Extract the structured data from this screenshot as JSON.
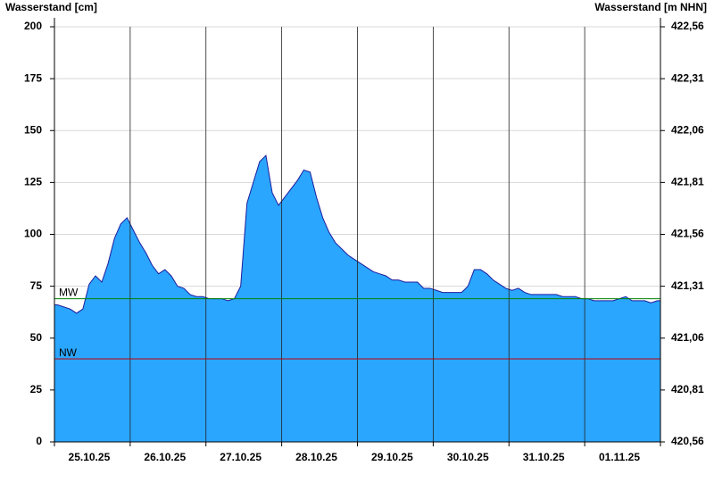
{
  "chart_data": {
    "type": "area",
    "title_left": "Wasserstand [cm]",
    "title_right": "Wasserstand [m NHN]",
    "categories": [
      null,
      null,
      null,
      null,
      null,
      "25.10.25",
      null,
      null,
      null,
      null,
      null,
      null,
      null,
      null,
      null,
      null,
      null,
      "26.10.25",
      null,
      null,
      null,
      null,
      null,
      null,
      null,
      null,
      null,
      null,
      null,
      "27.10.25",
      null,
      null,
      null,
      null,
      null,
      null,
      null,
      null,
      null,
      null,
      null,
      "28.10.25",
      null,
      null,
      null,
      null,
      null,
      null,
      null,
      null,
      null,
      null,
      null,
      "29.10.25",
      null,
      null,
      null,
      null,
      null,
      null,
      null,
      null,
      null,
      null,
      null,
      "30.10.25",
      null,
      null,
      null,
      null,
      null,
      null,
      null,
      null,
      null,
      null,
      null,
      "31.10.25",
      null,
      null,
      null,
      null,
      null,
      null,
      null,
      null,
      null,
      null,
      null,
      "01.11.25",
      null,
      null,
      null,
      null,
      null,
      null
    ],
    "series": [
      {
        "name": "Wasserstand",
        "color": "#2aa6ff",
        "line_color": "#1c1c9c",
        "values": [
          66,
          65,
          64,
          62,
          64,
          76,
          80,
          77,
          86,
          98,
          105,
          108,
          102,
          96,
          91,
          85,
          81,
          83,
          80,
          75,
          74,
          71,
          70,
          70,
          69,
          69,
          69,
          68,
          69,
          75,
          115,
          125,
          135,
          138,
          120,
          114,
          118,
          122,
          126,
          131,
          130,
          118,
          108,
          101,
          96,
          93,
          90,
          88,
          86,
          84,
          82,
          81,
          80,
          78,
          78,
          77,
          77,
          77,
          74,
          74,
          73,
          72,
          72,
          72,
          72,
          75,
          83,
          83,
          81,
          78,
          76,
          74,
          73,
          74,
          72,
          71,
          71,
          71,
          71,
          71,
          70,
          70,
          70,
          69,
          69,
          68,
          68,
          68,
          68,
          69,
          70,
          68,
          68,
          68,
          67,
          68
        ]
      }
    ],
    "reference_lines": [
      {
        "label": "MW",
        "value": 69,
        "color": "#008000"
      },
      {
        "label": "NW",
        "value": 40,
        "color": "#c00000"
      }
    ],
    "ylim": [
      0,
      200
    ],
    "yticks": [
      0,
      25,
      50,
      75,
      100,
      125,
      150,
      175,
      200
    ],
    "y2lim": [
      420.56,
      422.56
    ],
    "y2ticks": [
      {
        "value": 420.56,
        "label": "420,56"
      },
      {
        "value": 420.81,
        "label": "420,81"
      },
      {
        "value": 421.06,
        "label": "421,06"
      },
      {
        "value": 421.31,
        "label": "421,31"
      },
      {
        "value": 421.56,
        "label": "421,56"
      },
      {
        "value": 421.81,
        "label": "421,81"
      },
      {
        "value": 422.06,
        "label": "422,06"
      },
      {
        "value": 422.31,
        "label": "422,31"
      },
      {
        "value": 422.56,
        "label": "422,56"
      }
    ],
    "grid": true
  }
}
